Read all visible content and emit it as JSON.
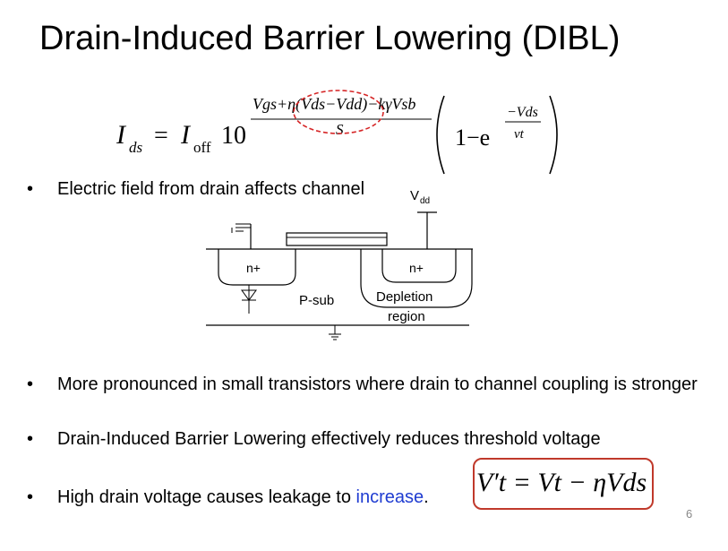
{
  "title": "Drain-Induced Barrier Lowering (DIBL)",
  "equation_main": {
    "lhs": "I",
    "lhs_sub": "ds",
    "equals": "=",
    "ioff": "I",
    "ioff_sub": "off",
    "base": "10",
    "numerator": "Vgs+η(Vds−Vdd)−kγVsb",
    "denominator": "S",
    "one_minus_e": "1−e",
    "exp_num": "−Vds",
    "exp_den": "vt"
  },
  "bullets": [
    {
      "text": "Electric field from drain affects channel"
    },
    {
      "text": "More pronounced in small transistors where drain to channel coupling is stronger"
    },
    {
      "text": "Drain-Induced Barrier Lowering effectively reduces threshold voltage"
    },
    {
      "text_before": "High drain voltage causes leakage to ",
      "highlight": "increase",
      "text_after": "."
    }
  ],
  "diagram": {
    "vdd_label": "V",
    "vdd_sub": "dd",
    "source_label": "n+",
    "drain_label": "n+",
    "substrate_label": "P-sub",
    "depletion_label_1": "Depletion",
    "depletion_label_2": "region"
  },
  "equation_vt": {
    "text": "V′t = Vt − ηVds"
  },
  "page_number": "6",
  "colors": {
    "highlight_text": "#1f3cd1",
    "box_border": "#c0392b",
    "dashed_ellipse": "#d62728"
  }
}
